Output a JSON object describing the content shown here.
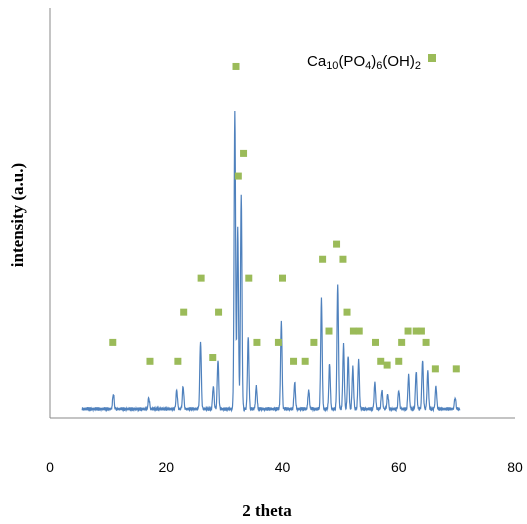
{
  "chart_data": {
    "type": "line",
    "title": "",
    "xlabel": "2 theta",
    "ylabel": "intensity (a.u.)",
    "xlim": [
      0,
      80
    ],
    "ylim": [
      0,
      100
    ],
    "x_ticks": [
      "0",
      "20",
      "40",
      "60",
      "80"
    ],
    "grid": false,
    "legend_position": "top-right",
    "series": [
      {
        "name": "",
        "color": "#4f81bd",
        "peaks": [
          {
            "x": 10.9,
            "y": 4
          },
          {
            "x": 17.0,
            "y": 3
          },
          {
            "x": 21.8,
            "y": 5
          },
          {
            "x": 22.9,
            "y": 6
          },
          {
            "x": 25.9,
            "y": 18
          },
          {
            "x": 28.1,
            "y": 6
          },
          {
            "x": 28.9,
            "y": 13
          },
          {
            "x": 31.8,
            "y": 79
          },
          {
            "x": 32.3,
            "y": 48
          },
          {
            "x": 32.9,
            "y": 57
          },
          {
            "x": 34.1,
            "y": 19
          },
          {
            "x": 35.5,
            "y": 6
          },
          {
            "x": 39.8,
            "y": 23
          },
          {
            "x": 42.1,
            "y": 7
          },
          {
            "x": 44.5,
            "y": 5
          },
          {
            "x": 46.7,
            "y": 29
          },
          {
            "x": 48.1,
            "y": 12
          },
          {
            "x": 49.5,
            "y": 33
          },
          {
            "x": 50.5,
            "y": 17
          },
          {
            "x": 51.3,
            "y": 14
          },
          {
            "x": 52.1,
            "y": 11
          },
          {
            "x": 53.1,
            "y": 13
          },
          {
            "x": 55.9,
            "y": 7
          },
          {
            "x": 57.1,
            "y": 5
          },
          {
            "x": 58.1,
            "y": 4
          },
          {
            "x": 60.0,
            "y": 5
          },
          {
            "x": 61.7,
            "y": 9
          },
          {
            "x": 63.0,
            "y": 10
          },
          {
            "x": 64.1,
            "y": 13
          },
          {
            "x": 65.0,
            "y": 10
          },
          {
            "x": 66.4,
            "y": 6
          },
          {
            "x": 69.7,
            "y": 3
          }
        ],
        "x_range": [
          5.5,
          70.5
        ],
        "baseline": 2
      },
      {
        "name": "Ca10(PO4)6(OH)2",
        "color": "#9bbb59",
        "marker": "square",
        "x": [
          10.8,
          17.2,
          22.0,
          23.0,
          26.0,
          28.0,
          29.0,
          32.0,
          32.4,
          33.3,
          34.2,
          35.6,
          39.3,
          40.0,
          41.9,
          43.9,
          45.4,
          46.9,
          48.0,
          49.3,
          50.4,
          51.1,
          52.2,
          53.2,
          56.0,
          56.9,
          58.0,
          60.0,
          60.5,
          61.6,
          63.0,
          63.9,
          64.7,
          66.3,
          69.9
        ],
        "y": [
          20,
          15,
          15,
          28,
          37,
          16,
          28,
          93,
          64,
          70,
          37,
          20,
          20,
          37,
          15,
          15,
          20,
          42,
          23,
          46,
          42,
          28,
          23,
          23,
          20,
          15,
          14,
          15,
          20,
          23,
          23,
          23,
          20,
          13,
          13
        ]
      }
    ],
    "legend": {
      "label_main": "Ca",
      "segments": [
        {
          "text": "10",
          "sub": true
        },
        {
          "text": "(PO",
          "sub": false
        },
        {
          "text": "4",
          "sub": true
        },
        {
          "text": ")",
          "sub": false
        },
        {
          "text": "6",
          "sub": true
        },
        {
          "text": "(OH)",
          "sub": false
        },
        {
          "text": "2",
          "sub": true
        }
      ],
      "marker_color": "#9bbb59"
    }
  }
}
